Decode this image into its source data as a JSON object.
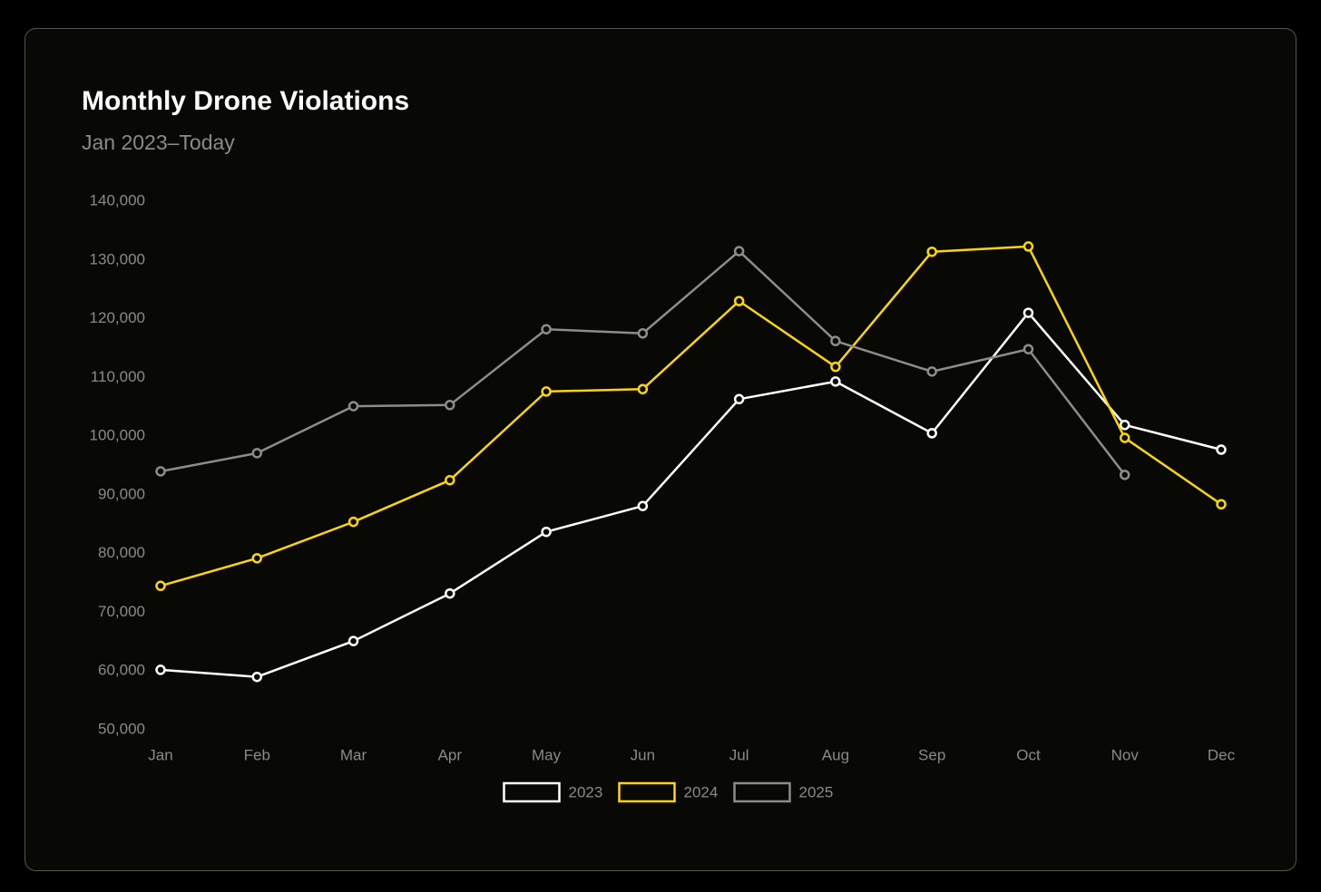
{
  "chart_data": {
    "type": "line",
    "title": "Monthly Drone Violations",
    "subtitle": "Jan 2023–Today",
    "categories": [
      "Jan",
      "Feb",
      "Mar",
      "Apr",
      "May",
      "Jun",
      "Jul",
      "Aug",
      "Sep",
      "Oct",
      "Nov",
      "Dec"
    ],
    "series": [
      {
        "name": "2023",
        "color": "#ffffff",
        "values": [
          60200,
          59000,
          65100,
          73200,
          83700,
          88100,
          106300,
          109300,
          100500,
          121000,
          101900,
          97700
        ]
      },
      {
        "name": "2024",
        "color": "#ffd60a",
        "values": [
          74500,
          79200,
          85400,
          92500,
          107600,
          108000,
          123000,
          111800,
          131400,
          132300,
          99700,
          88400
        ]
      },
      {
        "name": "2025",
        "color": "#8c8c8c",
        "values": [
          94000,
          97100,
          105100,
          105300,
          118200,
          117500,
          131500,
          116200,
          111000,
          114800,
          93400,
          null
        ]
      }
    ],
    "ylim": [
      50000,
      140000
    ],
    "yticks": [
      {
        "value": 50000,
        "label": "50,000"
      },
      {
        "value": 60000,
        "label": "60,000"
      },
      {
        "value": 70000,
        "label": "70,000"
      },
      {
        "value": 80000,
        "label": "80,000"
      },
      {
        "value": 90000,
        "label": "90,000"
      },
      {
        "value": 100000,
        "label": "100,000"
      },
      {
        "value": 110000,
        "label": "110,000"
      },
      {
        "value": 120000,
        "label": "120,000"
      },
      {
        "value": 130000,
        "label": "130,000"
      },
      {
        "value": 140000,
        "label": "140,000"
      }
    ],
    "grid": false,
    "legend": "bottom"
  }
}
